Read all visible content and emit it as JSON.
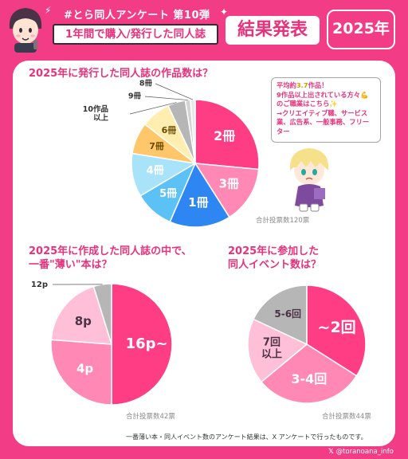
{
  "header": {
    "hashtag": "#とら同人アンケート 第10弾",
    "subtitle": "1年間で購入/発行した同人誌",
    "result_title": "結果発表",
    "year": "2025年"
  },
  "speech_bubble": {
    "line1_prefix": "平均約",
    "line1_value": "3.7",
    "line1_suffix": "作品！",
    "line2": "9作品以上出されている方々",
    "line3": "のご職業はこちら",
    "line4": "→クリエイティブ職、サービス",
    "line5": "業、広告系、一般事務、フリー",
    "line6": "ター"
  },
  "footnote": "一番薄い本・同人イベント数のアンケート結果は、X アンケートで行ったものです。",
  "credit": "@toranoana_info",
  "colors": {
    "background": "#f23d86",
    "accent": "#e8327c"
  },
  "chart_data": [
    {
      "type": "pie",
      "title": "2025年に発行した同人誌の作品数は？",
      "total_label": "合計投票数120票",
      "slices": [
        {
          "label": "2冊",
          "value": 26.5,
          "color": "#ff3d85"
        },
        {
          "label": "3冊",
          "value": 14.5,
          "color": "#ff88b4"
        },
        {
          "label": "1冊",
          "value": 15.5,
          "color": "#2e86f2"
        },
        {
          "label": "5冊",
          "value": 10,
          "color": "#5cc1f5"
        },
        {
          "label": "4冊",
          "value": 11,
          "color": "#a8e3fa"
        },
        {
          "label": "7冊",
          "value": 8,
          "color": "#ffc76a"
        },
        {
          "label": "6冊",
          "value": 7.5,
          "color": "#ffeeb0"
        },
        {
          "label": "10作品以上",
          "value": 4.5,
          "color": "#b6b6b6"
        },
        {
          "label": "9冊",
          "value": 1.3,
          "color": "#d3d3d3"
        },
        {
          "label": "8冊",
          "value": 1.2,
          "color": "#e9e9e9"
        }
      ]
    },
    {
      "type": "pie",
      "title": "2025年に作成した同人誌の中で、",
      "title_line2": "一番\"薄い\"本は？",
      "total_label": "合計投票数42票",
      "slices": [
        {
          "label": "16p~",
          "value": 50,
          "color": "#ff3d85"
        },
        {
          "label": "4p",
          "value": 26.2,
          "color": "#ff88b4"
        },
        {
          "label": "8p",
          "value": 19,
          "color": "#ffbfd7"
        },
        {
          "label": "12p",
          "value": 4.8,
          "color": "#b6b6b6"
        }
      ]
    },
    {
      "type": "pie",
      "title": "2025年に参加した",
      "title_line2": "同人イベント数は？",
      "total_label": "合計投票数44票",
      "slices": [
        {
          "label": "~2回",
          "value": 34,
          "color": "#ff3d85"
        },
        {
          "label": "3-4回",
          "value": 30,
          "color": "#ff88b4"
        },
        {
          "label": "7回以上",
          "value": 18,
          "color": "#ffbfd7"
        },
        {
          "label": "5-6回",
          "value": 18,
          "color": "#b6b6b6"
        }
      ]
    }
  ]
}
